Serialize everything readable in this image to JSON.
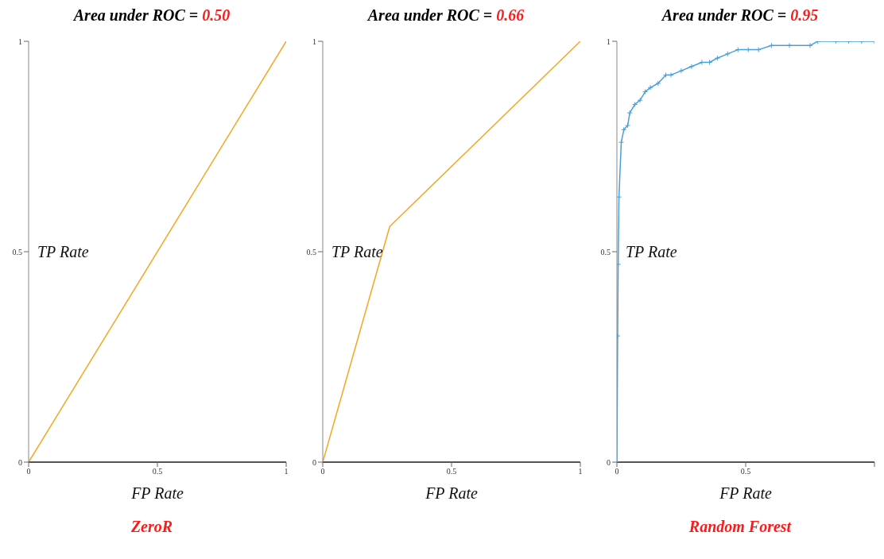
{
  "chart_data": [
    {
      "type": "line",
      "title": "Area under ROC = 0.50",
      "xlabel": "FP Rate",
      "ylabel": "TP Rate",
      "annotations": [
        "ZeroR"
      ],
      "xlim": [
        0,
        1
      ],
      "ylim": [
        0,
        1
      ],
      "xticks": [
        0,
        0.5,
        1
      ],
      "yticks": [
        0,
        0.5,
        1
      ],
      "grid": false,
      "legend": false,
      "marker": "none",
      "line_style": "solid",
      "series": [
        {
          "color": "#f5a623",
          "x": [
            0,
            1
          ],
          "values": [
            0,
            1
          ]
        }
      ]
    },
    {
      "type": "line",
      "title": "Area under ROC = 0.66",
      "xlabel": "FP Rate",
      "ylabel": "TP Rate",
      "xlim": [
        0,
        1
      ],
      "ylim": [
        0,
        1
      ],
      "xticks": [
        0,
        0.5,
        1
      ],
      "yticks": [
        0,
        0.5,
        1
      ],
      "grid": false,
      "legend": false,
      "marker": "none",
      "line_style": "solid",
      "series": [
        {
          "color": "#f5a623",
          "x": [
            0,
            0.26,
            1
          ],
          "values": [
            0,
            0.56,
            1
          ]
        }
      ]
    },
    {
      "type": "line",
      "title": "Area under ROC = 0.95",
      "xlabel": "FP Rate",
      "ylabel": "TP Rate",
      "annotations": [
        "Random Forest"
      ],
      "xlim": [
        0,
        1
      ],
      "ylim": [
        0,
        1
      ],
      "xticks": [
        0,
        0.5,
        {
          "value": 1,
          "label": null
        }
      ],
      "yticks": [
        0,
        0.5,
        1
      ],
      "grid": false,
      "legend": false,
      "marker": "cross",
      "line_style": "solid",
      "series": [
        {
          "color": "#4a9fd8",
          "x": [
            0,
            0.003,
            0.005,
            0.008,
            0.017,
            0.027,
            0.042,
            0.05,
            0.07,
            0.09,
            0.11,
            0.13,
            0.16,
            0.19,
            0.21,
            0.25,
            0.29,
            0.33,
            0.36,
            0.39,
            0.43,
            0.47,
            0.51,
            0.55,
            0.6,
            0.67,
            0.75,
            0.78,
            0.85,
            0.9,
            0.95,
            1
          ],
          "values": [
            0,
            0.3,
            0.47,
            0.63,
            0.76,
            0.79,
            0.8,
            0.83,
            0.85,
            0.86,
            0.88,
            0.89,
            0.9,
            0.92,
            0.92,
            0.93,
            0.94,
            0.95,
            0.95,
            0.96,
            0.97,
            0.98,
            0.98,
            0.98,
            0.99,
            0.99,
            0.99,
            1,
            1,
            1,
            1,
            1
          ]
        }
      ]
    }
  ]
}
